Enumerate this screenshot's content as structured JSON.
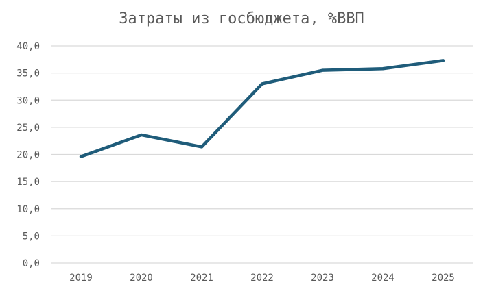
{
  "chart_data": {
    "type": "line",
    "title": "Затраты из госбюджета, %ВВП",
    "xlabel": "",
    "ylabel": "",
    "categories": [
      "2019",
      "2020",
      "2021",
      "2022",
      "2023",
      "2024",
      "2025"
    ],
    "series": [
      {
        "values": [
          19.6,
          23.6,
          21.4,
          33.0,
          35.5,
          35.8,
          37.3
        ]
      }
    ],
    "y_ticks": [
      "0,0",
      "5,0",
      "10,0",
      "15,0",
      "20,0",
      "25,0",
      "30,0",
      "35,0",
      "40,0"
    ],
    "ylim": [
      0,
      40
    ],
    "grid": true,
    "legend": "none",
    "colors": {
      "line": "#1f5c7a",
      "grid": "#d9d9d9",
      "text": "#595959"
    }
  }
}
